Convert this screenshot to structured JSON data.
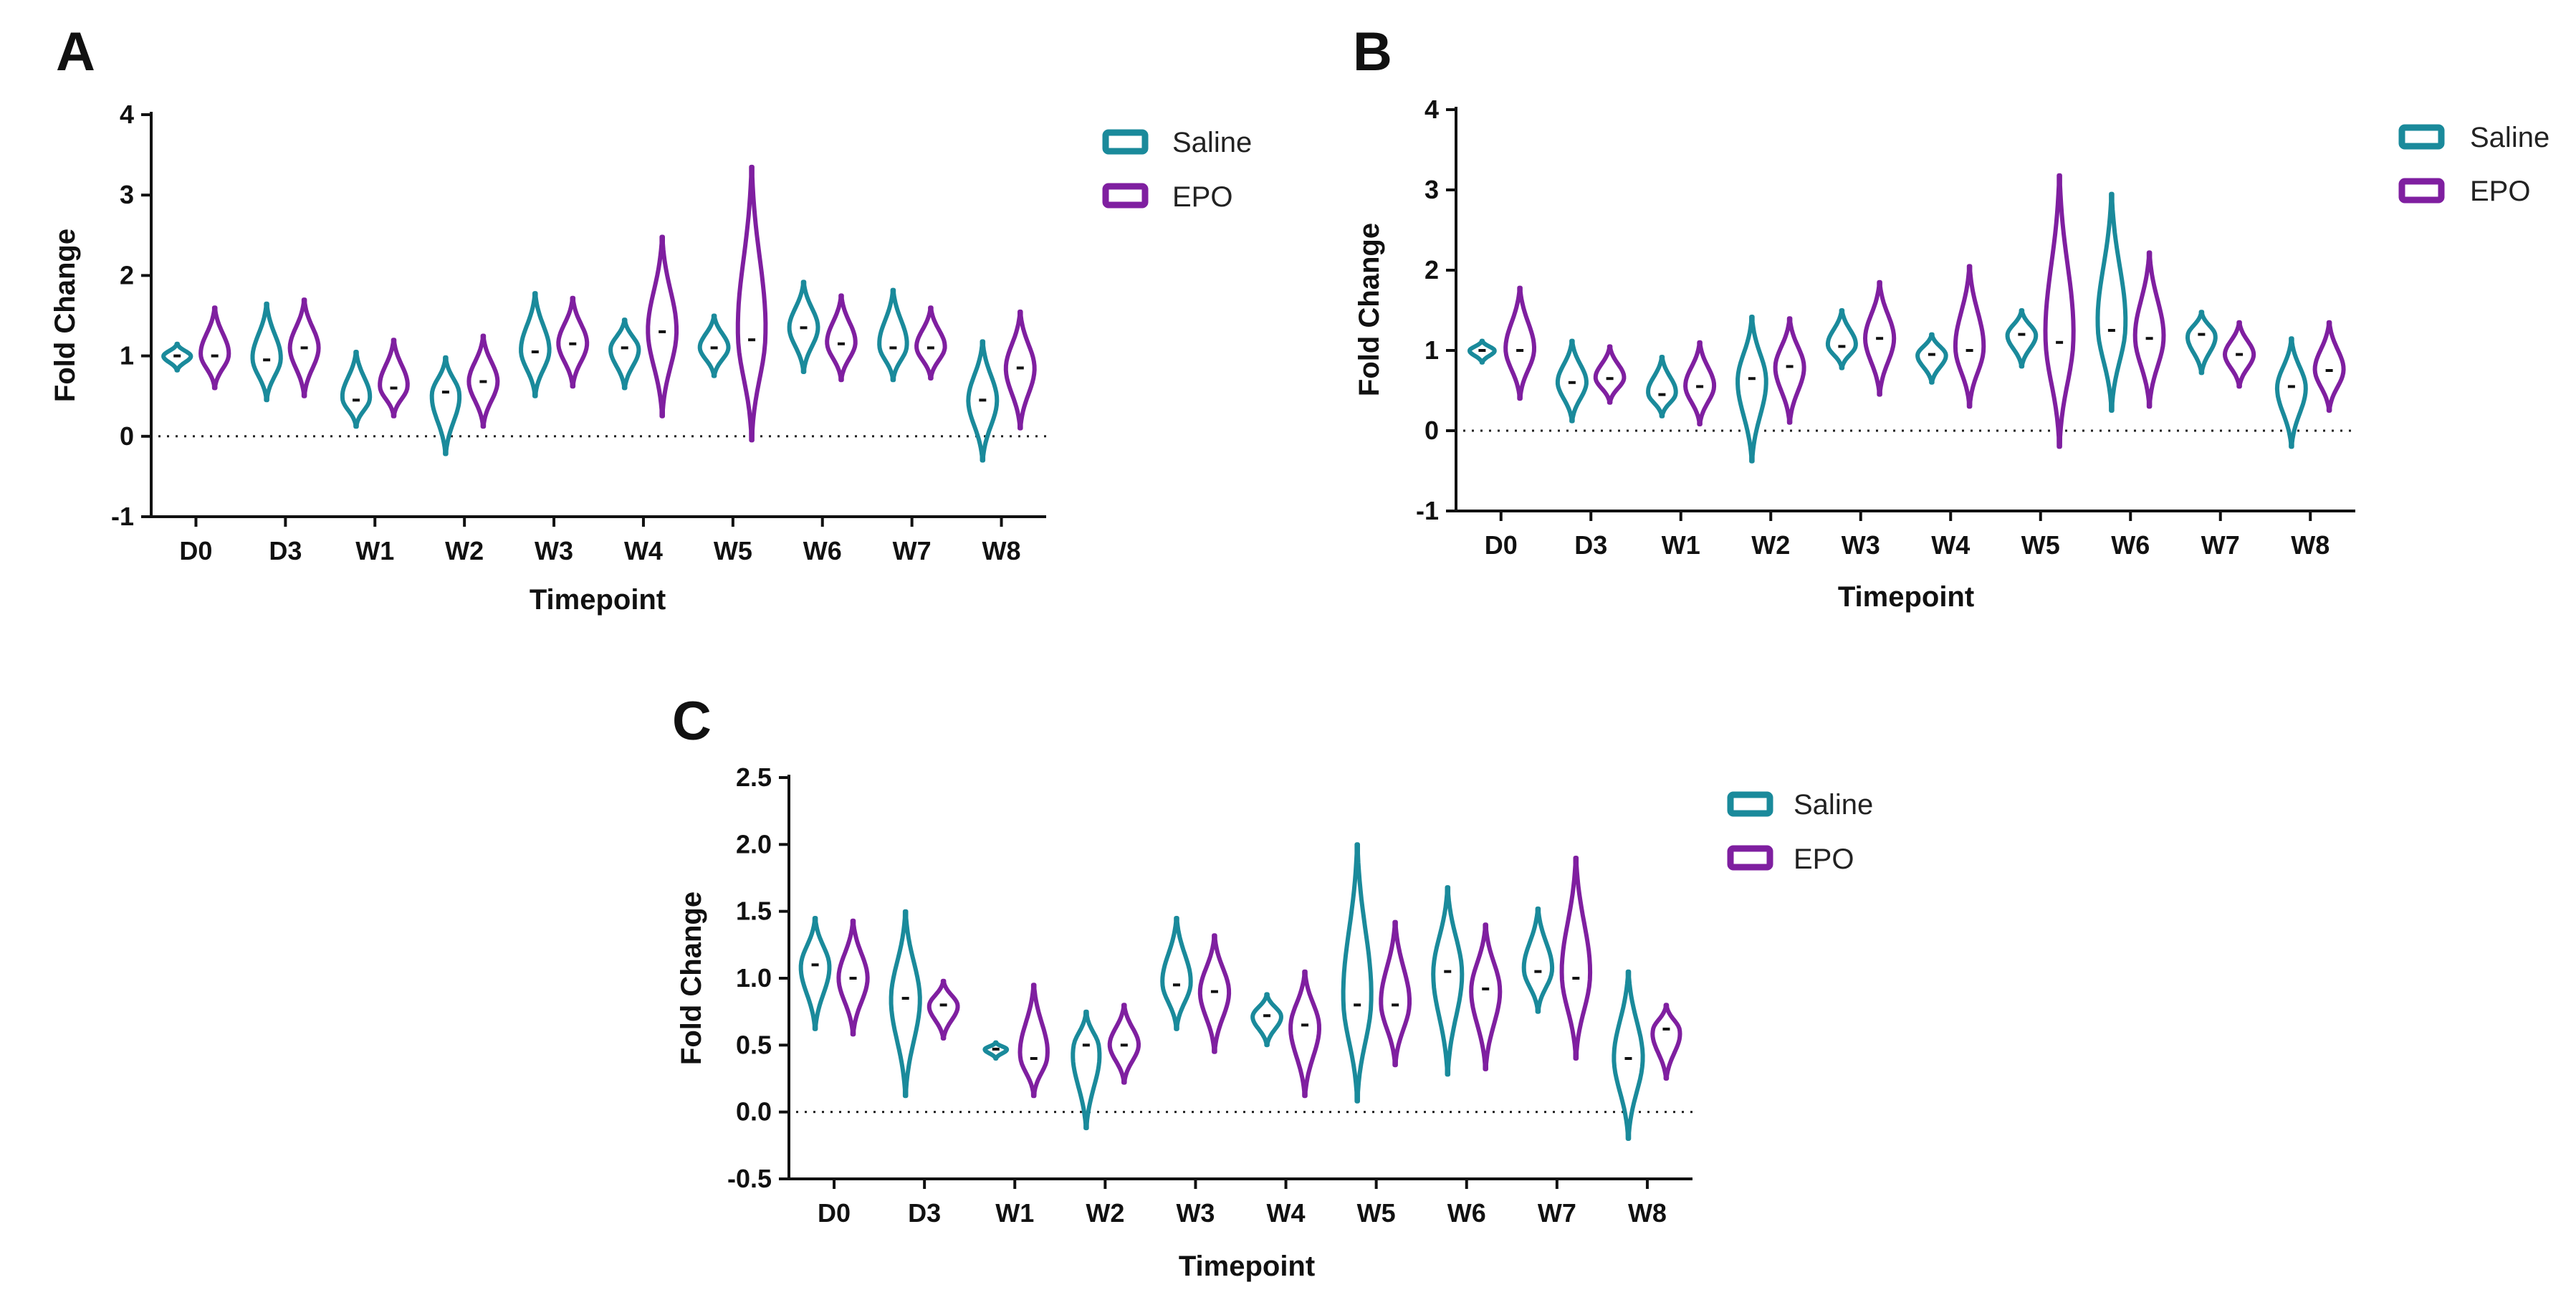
{
  "colors": {
    "saline": "#1a8a9b",
    "epo": "#7f1fa0"
  },
  "chart_data": [
    {
      "panel": "A",
      "type": "violin",
      "title": "",
      "xlabel": "Timepoint",
      "ylabel": "Fold Change",
      "ylim": [
        -1,
        4
      ],
      "yticks": [
        -1,
        0,
        1,
        2,
        3,
        4
      ],
      "ytick_labels": [
        "-1",
        "0",
        "1",
        "2",
        "3",
        "4"
      ],
      "categories": [
        "D0",
        "D3",
        "W1",
        "W2",
        "W3",
        "W4",
        "W5",
        "W6",
        "W7",
        "W8"
      ],
      "legend": [
        "Saline",
        "EPO"
      ],
      "series": [
        {
          "name": "Saline",
          "median": [
            1.0,
            0.95,
            0.45,
            0.55,
            1.05,
            1.1,
            1.1,
            1.35,
            1.1,
            0.45
          ],
          "min": [
            0.82,
            0.45,
            0.12,
            -0.22,
            0.5,
            0.6,
            0.75,
            0.8,
            0.7,
            -0.3
          ],
          "max": [
            1.15,
            1.65,
            1.05,
            0.98,
            1.78,
            1.45,
            1.5,
            1.92,
            1.82,
            1.18
          ]
        },
        {
          "name": "EPO",
          "median": [
            1.0,
            1.1,
            0.6,
            0.68,
            1.15,
            1.3,
            1.2,
            1.15,
            1.1,
            0.85
          ],
          "min": [
            0.6,
            0.5,
            0.25,
            0.12,
            0.62,
            0.25,
            -0.05,
            0.7,
            0.72,
            0.1
          ],
          "max": [
            1.6,
            1.7,
            1.2,
            1.25,
            1.72,
            2.48,
            3.35,
            1.75,
            1.6,
            1.55
          ]
        }
      ]
    },
    {
      "panel": "B",
      "type": "violin",
      "title": "",
      "xlabel": "Timepoint",
      "ylabel": "Fold Change",
      "ylim": [
        -1,
        4
      ],
      "yticks": [
        -1,
        0,
        1,
        2,
        3,
        4
      ],
      "ytick_labels": [
        "-1",
        "0",
        "1",
        "2",
        "3",
        "4"
      ],
      "categories": [
        "D0",
        "D3",
        "W1",
        "W2",
        "W3",
        "W4",
        "W5",
        "W6",
        "W7",
        "W8"
      ],
      "legend": [
        "Saline",
        "EPO"
      ],
      "series": [
        {
          "name": "Saline",
          "median": [
            1.0,
            0.6,
            0.45,
            0.65,
            1.05,
            0.95,
            1.2,
            1.25,
            1.2,
            0.55
          ],
          "min": [
            0.85,
            0.12,
            0.18,
            -0.38,
            0.78,
            0.6,
            0.8,
            0.25,
            0.72,
            -0.2
          ],
          "max": [
            1.12,
            1.12,
            0.92,
            1.42,
            1.5,
            1.2,
            1.5,
            2.95,
            1.48,
            1.15
          ]
        },
        {
          "name": "EPO",
          "median": [
            1.0,
            0.65,
            0.55,
            0.8,
            1.15,
            1.0,
            1.1,
            1.15,
            0.95,
            0.75
          ],
          "min": [
            0.4,
            0.35,
            0.08,
            0.1,
            0.45,
            0.3,
            -0.2,
            0.3,
            0.55,
            0.25
          ],
          "max": [
            1.78,
            1.05,
            1.1,
            1.4,
            1.85,
            2.05,
            3.18,
            2.22,
            1.35,
            1.35
          ]
        }
      ]
    },
    {
      "panel": "C",
      "type": "violin",
      "title": "",
      "xlabel": "Timepoint",
      "ylabel": "Fold Change",
      "ylim": [
        -0.5,
        2.5
      ],
      "yticks": [
        -0.5,
        0.0,
        0.5,
        1.0,
        1.5,
        2.0,
        2.5
      ],
      "ytick_labels": [
        "-0.5",
        "0.0",
        "0.5",
        "1.0",
        "1.5",
        "2.0",
        "2.5"
      ],
      "categories": [
        "D0",
        "D3",
        "W1",
        "W2",
        "W3",
        "W4",
        "W5",
        "W6",
        "W7",
        "W8"
      ],
      "legend": [
        "Saline",
        "EPO"
      ],
      "series": [
        {
          "name": "Saline",
          "median": [
            1.1,
            0.85,
            0.47,
            0.5,
            0.95,
            0.72,
            0.8,
            1.05,
            1.05,
            0.4
          ],
          "min": [
            0.62,
            0.12,
            0.4,
            -0.12,
            0.62,
            0.5,
            0.08,
            0.28,
            0.75,
            -0.2
          ],
          "max": [
            1.45,
            1.5,
            0.52,
            0.75,
            1.45,
            0.88,
            2.0,
            1.68,
            1.52,
            1.05
          ]
        },
        {
          "name": "EPO",
          "median": [
            1.0,
            0.8,
            0.4,
            0.5,
            0.9,
            0.65,
            0.8,
            0.92,
            1.0,
            0.62
          ],
          "min": [
            0.58,
            0.55,
            0.12,
            0.22,
            0.45,
            0.12,
            0.35,
            0.32,
            0.4,
            0.25
          ],
          "max": [
            1.43,
            0.98,
            0.95,
            0.8,
            1.32,
            1.05,
            1.42,
            1.4,
            1.9,
            0.8
          ]
        }
      ]
    }
  ]
}
